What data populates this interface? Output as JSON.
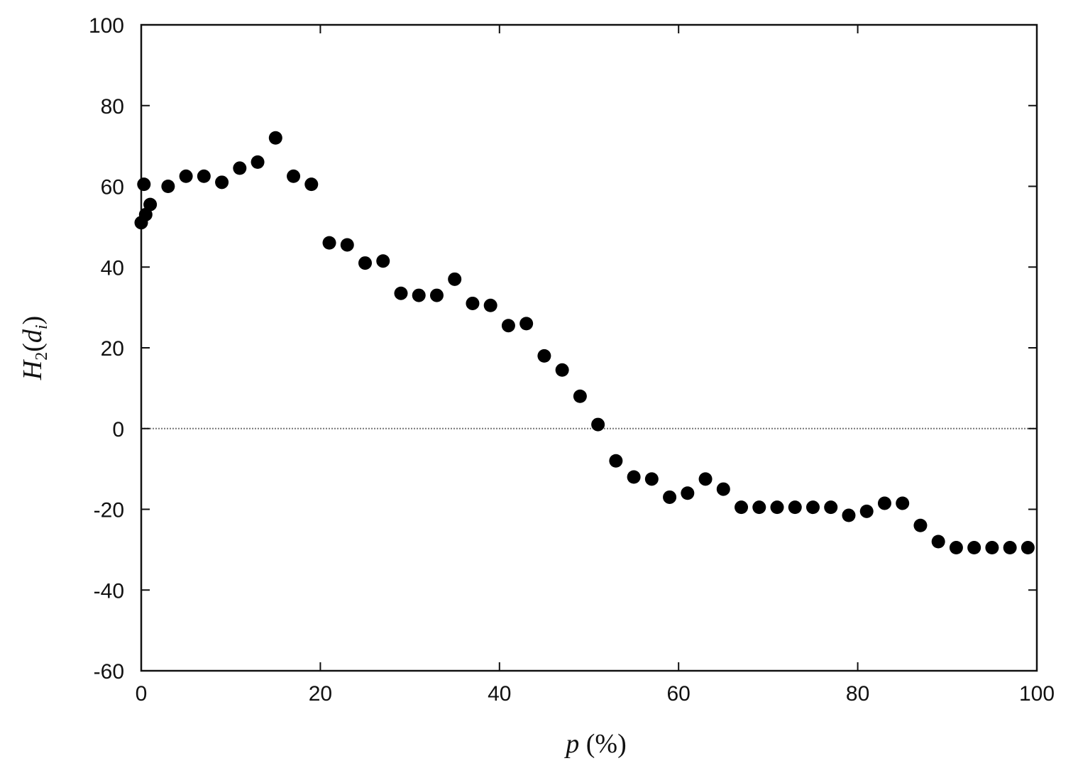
{
  "chart_data": {
    "type": "scatter",
    "xlabel": {
      "var": "p",
      "unit": " (%)"
    },
    "ylabel": {
      "main": "H",
      "sub1": "2",
      "open": "(",
      "var": "d",
      "sub2": "i",
      "close": ")"
    },
    "xlim": [
      0,
      100
    ],
    "ylim": [
      -60,
      100
    ],
    "xticks": [
      0,
      20,
      40,
      60,
      80,
      100
    ],
    "yticks": [
      -60,
      -40,
      -20,
      0,
      20,
      40,
      60,
      80,
      100
    ],
    "xtick_labels": [
      "0",
      "20",
      "40",
      "60",
      "80",
      "100"
    ],
    "ytick_labels": [
      "-60",
      "-40",
      "-20",
      "0",
      "20",
      "40",
      "60",
      "80",
      "100"
    ],
    "zero_line": true,
    "grid": false,
    "marker_color": "#000000",
    "points": [
      {
        "x": 0,
        "y": 51
      },
      {
        "x": 0.3,
        "y": 60.5
      },
      {
        "x": 0.5,
        "y": 53
      },
      {
        "x": 1,
        "y": 55.5
      },
      {
        "x": 3,
        "y": 60
      },
      {
        "x": 5,
        "y": 62.5
      },
      {
        "x": 7,
        "y": 62.5
      },
      {
        "x": 9,
        "y": 61
      },
      {
        "x": 11,
        "y": 64.5
      },
      {
        "x": 13,
        "y": 66
      },
      {
        "x": 15,
        "y": 72
      },
      {
        "x": 17,
        "y": 62.5
      },
      {
        "x": 19,
        "y": 60.5
      },
      {
        "x": 21,
        "y": 46
      },
      {
        "x": 23,
        "y": 45.5
      },
      {
        "x": 25,
        "y": 41
      },
      {
        "x": 27,
        "y": 41.5
      },
      {
        "x": 29,
        "y": 33.5
      },
      {
        "x": 31,
        "y": 33
      },
      {
        "x": 33,
        "y": 33
      },
      {
        "x": 35,
        "y": 37
      },
      {
        "x": 37,
        "y": 31
      },
      {
        "x": 39,
        "y": 30.5
      },
      {
        "x": 41,
        "y": 25.5
      },
      {
        "x": 43,
        "y": 26
      },
      {
        "x": 45,
        "y": 18
      },
      {
        "x": 47,
        "y": 14.5
      },
      {
        "x": 49,
        "y": 8
      },
      {
        "x": 51,
        "y": 1
      },
      {
        "x": 53,
        "y": -8
      },
      {
        "x": 55,
        "y": -12
      },
      {
        "x": 57,
        "y": -12.5
      },
      {
        "x": 59,
        "y": -17
      },
      {
        "x": 61,
        "y": -16
      },
      {
        "x": 63,
        "y": -12.5
      },
      {
        "x": 65,
        "y": -15
      },
      {
        "x": 67,
        "y": -19.5
      },
      {
        "x": 69,
        "y": -19.5
      },
      {
        "x": 71,
        "y": -19.5
      },
      {
        "x": 73,
        "y": -19.5
      },
      {
        "x": 75,
        "y": -19.5
      },
      {
        "x": 77,
        "y": -19.5
      },
      {
        "x": 79,
        "y": -21.5
      },
      {
        "x": 81,
        "y": -20.5
      },
      {
        "x": 83,
        "y": -18.5
      },
      {
        "x": 85,
        "y": -18.5
      },
      {
        "x": 87,
        "y": -24
      },
      {
        "x": 89,
        "y": -28
      },
      {
        "x": 91,
        "y": -29.5
      },
      {
        "x": 93,
        "y": -29.5
      },
      {
        "x": 95,
        "y": -29.5
      },
      {
        "x": 97,
        "y": -29.5
      },
      {
        "x": 99,
        "y": -29.5
      }
    ]
  }
}
